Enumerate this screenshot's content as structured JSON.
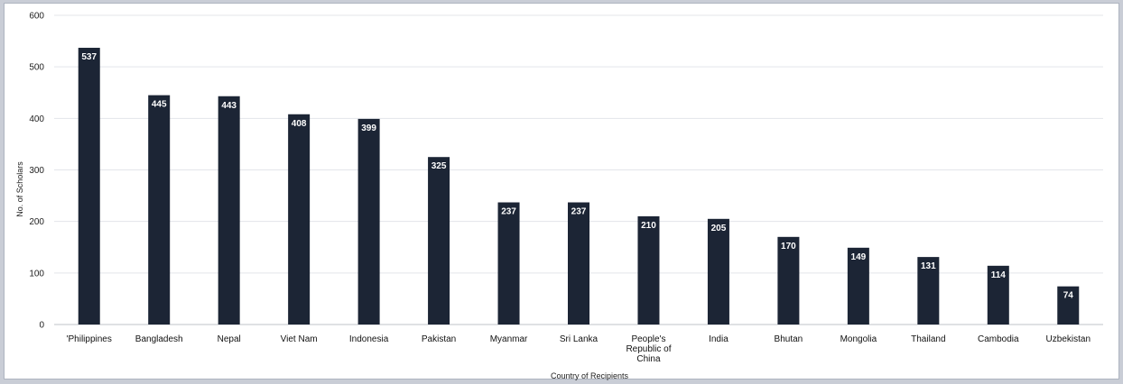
{
  "chart_data": {
    "type": "bar",
    "title": "",
    "xlabel": "Country of Recipients",
    "ylabel": "No. of Scholars",
    "ylim": [
      0,
      600
    ],
    "yticks": [
      "0",
      "100",
      "200",
      "300",
      "400",
      "500",
      "600"
    ],
    "grid": true,
    "bar_color": "#1c2535",
    "categories": [
      [
        "'Philippines"
      ],
      [
        "Bangladesh"
      ],
      [
        "Nepal"
      ],
      [
        "Viet Nam"
      ],
      [
        "Indonesia"
      ],
      [
        "Pakistan"
      ],
      [
        "Myanmar"
      ],
      [
        "Sri Lanka"
      ],
      [
        "People's",
        "Republic of",
        "China"
      ],
      [
        "India"
      ],
      [
        "Bhutan"
      ],
      [
        "Mongolia"
      ],
      [
        "Thailand"
      ],
      [
        "Cambodia"
      ],
      [
        "Uzbekistan"
      ]
    ],
    "values": [
      537,
      445,
      443,
      408,
      399,
      325,
      237,
      237,
      210,
      205,
      170,
      149,
      131,
      114,
      74
    ]
  }
}
